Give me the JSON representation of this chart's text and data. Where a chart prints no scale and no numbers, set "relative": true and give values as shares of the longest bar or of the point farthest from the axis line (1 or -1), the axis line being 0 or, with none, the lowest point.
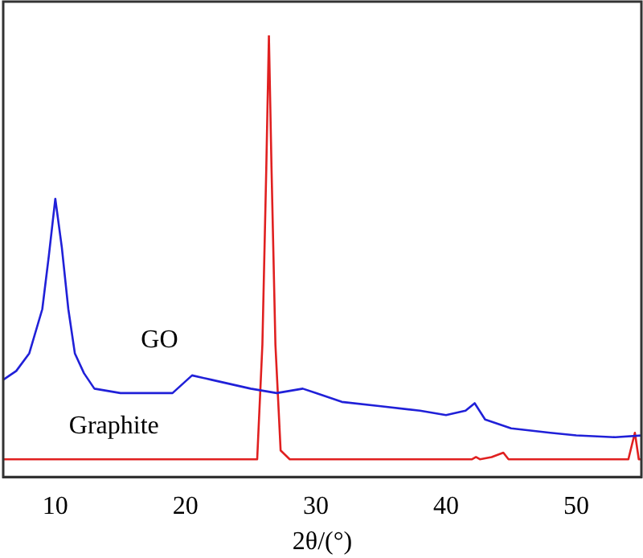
{
  "chart_data": {
    "type": "line",
    "relative": true,
    "xlabel": "2θ/(°)",
    "xlim": [
      6,
      55
    ],
    "xticks": [
      10,
      20,
      30,
      40,
      50
    ],
    "grid": false,
    "legend": false,
    "marker": "none",
    "line_style": "solid",
    "series": [
      {
        "name": "GO",
        "color": "#2020d8",
        "x": [
          6,
          7,
          8,
          9,
          9.5,
          10,
          10.5,
          11,
          11.5,
          12.2,
          13,
          15,
          17,
          19,
          20.5,
          22,
          25,
          27,
          29,
          30,
          32,
          35,
          38,
          40,
          41.5,
          42.2,
          43,
          45,
          48,
          50,
          53,
          55
        ],
        "values": [
          0.22,
          0.24,
          0.28,
          0.38,
          0.5,
          0.63,
          0.52,
          0.38,
          0.28,
          0.235,
          0.2,
          0.19,
          0.19,
          0.19,
          0.23,
          0.22,
          0.2,
          0.19,
          0.2,
          0.19,
          0.17,
          0.16,
          0.15,
          0.14,
          0.15,
          0.167,
          0.13,
          0.11,
          0.1,
          0.094,
          0.09,
          0.094
        ]
      },
      {
        "name": "Graphite",
        "color": "#e02020",
        "x": [
          6,
          25.5,
          25.9,
          26.2,
          26.4,
          26.6,
          26.9,
          27.3,
          28,
          42,
          42.3,
          42.6,
          43.5,
          44.4,
          44.8,
          54,
          54.5,
          54.8,
          55
        ],
        "values": [
          0.04,
          0.04,
          0.3,
          0.7,
          1,
          0.7,
          0.3,
          0.06,
          0.04,
          0.04,
          0.045,
          0.04,
          0.045,
          0.055,
          0.04,
          0.04,
          0.1,
          0.04,
          0.04
        ]
      }
    ]
  }
}
